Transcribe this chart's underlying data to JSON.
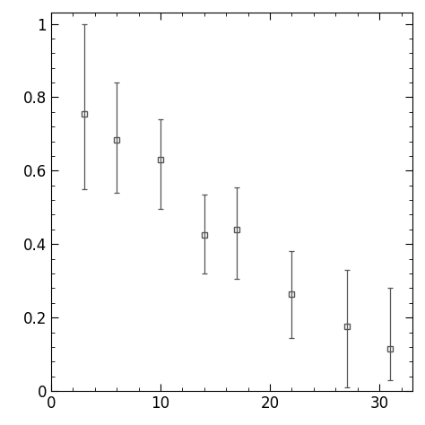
{
  "x": [
    3,
    6,
    10,
    14,
    17,
    22,
    27,
    31
  ],
  "y": [
    0.755,
    0.685,
    0.63,
    0.425,
    0.44,
    0.265,
    0.175,
    0.115
  ],
  "yerr_upper": [
    0.245,
    0.155,
    0.11,
    0.11,
    0.115,
    0.115,
    0.155,
    0.165
  ],
  "yerr_lower": [
    0.205,
    0.145,
    0.135,
    0.105,
    0.135,
    0.12,
    0.165,
    0.085
  ],
  "xlim": [
    0,
    33
  ],
  "ylim": [
    0,
    1.03
  ],
  "xticks": [
    0,
    10,
    20,
    30
  ],
  "yticks": [
    0,
    0.2,
    0.4,
    0.6,
    0.8,
    1.0
  ],
  "ytick_labels": [
    "0",
    "0.2",
    "0.4",
    "0.6",
    "0.8",
    "1"
  ],
  "marker": "s",
  "markersize": 4,
  "color": "#555555",
  "capsize": 2,
  "linewidth": 0.9,
  "background_color": "#ffffff"
}
